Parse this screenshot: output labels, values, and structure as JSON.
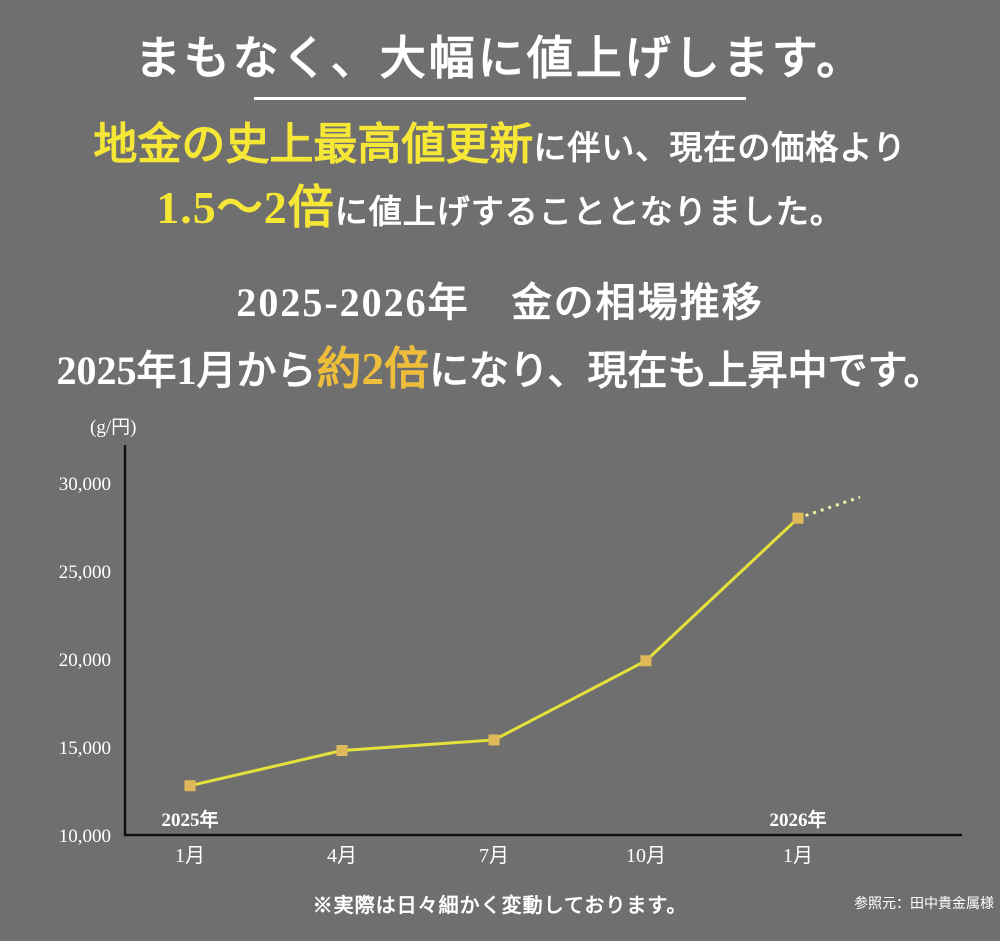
{
  "page": {
    "background": "#706f6f"
  },
  "hero": {
    "title": "まもなく、大幅に値上げします。",
    "highlight1": "地金の史上最高値更新",
    "rest1": "に伴い、現在の価格より",
    "highlight2": "1.5〜2倍",
    "rest2": "に値上げすることとなりました。",
    "highlight_color": "#f6e737"
  },
  "chart_section": {
    "heading": "2025-2026年　金の相場推移",
    "sub_pre": "2025年1月から",
    "sub_highlight": "約2倍",
    "sub_post": "になり、現在も上昇中です。",
    "highlight_color": "#eebd3a"
  },
  "chart_data": {
    "type": "line",
    "title": "2025-2026年 金の相場推移",
    "unit_label": "(g/円)",
    "categories": [
      "1月",
      "4月",
      "7月",
      "10月",
      "1月"
    ],
    "values": [
      12800,
      14800,
      15400,
      19900,
      28000
    ],
    "projection_end_value": 29200,
    "y_ticks": [
      {
        "value": 10000,
        "label": "10,000"
      },
      {
        "value": 15000,
        "label": "15,000"
      },
      {
        "value": 20000,
        "label": "20,000"
      },
      {
        "value": 25000,
        "label": "25,000"
      },
      {
        "value": 30000,
        "label": "30,000"
      }
    ],
    "ylim": [
      10000,
      31000
    ],
    "year_labels": [
      {
        "label": "2025年",
        "index": 0
      },
      {
        "label": "2026年",
        "index": 4
      }
    ],
    "grid": false,
    "legend": "none",
    "line_color": "#e4e13b",
    "projection_color": "#f3f2a9",
    "marker_color": "#dfb959",
    "axis_color": "#121212",
    "tick_label_color": "#ffffff"
  },
  "footer": {
    "note": "※実際は日々細かく変動しております。",
    "source": "参照元：田中貴金属様"
  }
}
